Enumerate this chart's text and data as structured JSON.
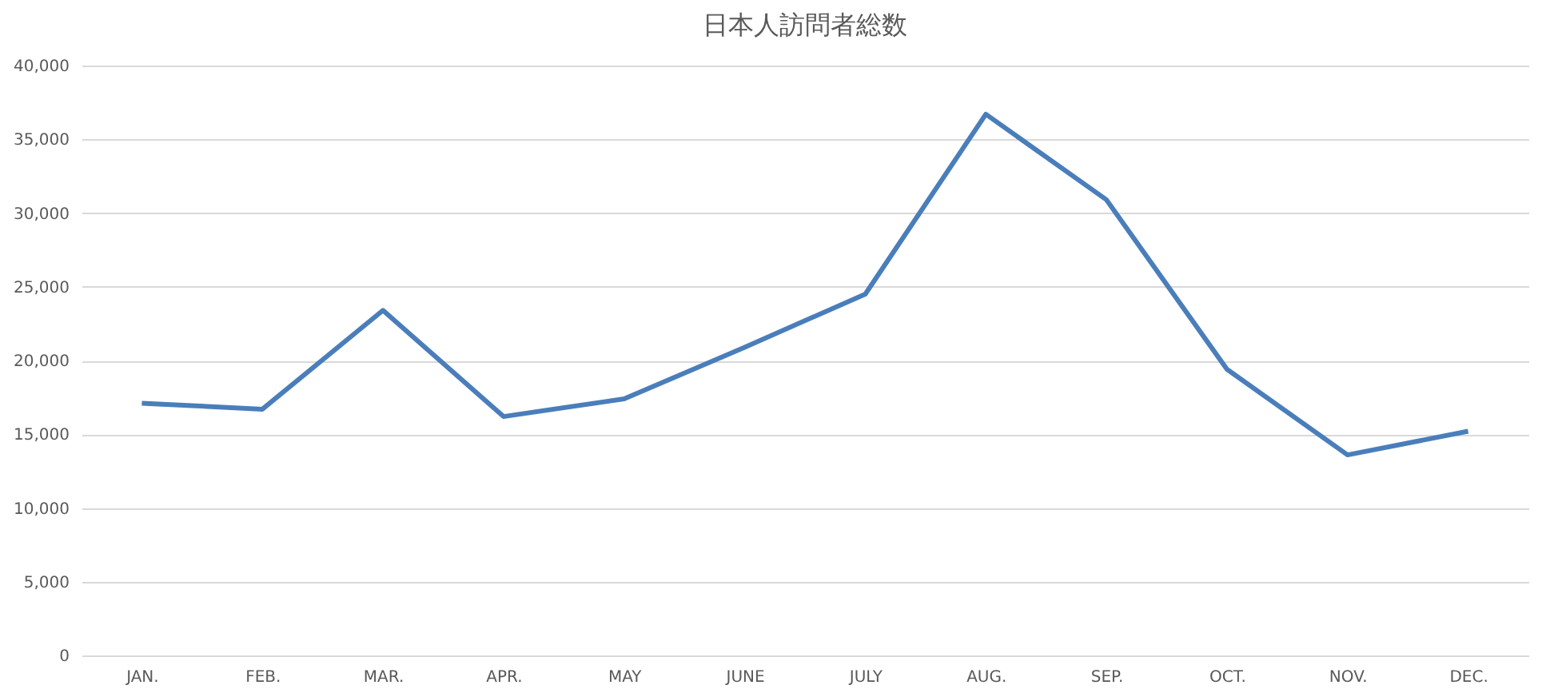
{
  "chart_data": {
    "type": "line",
    "title": "日本人訪問者総数",
    "categories": [
      "JAN.",
      "FEB.",
      "MAR.",
      "APR.",
      "MAY",
      "JUNE",
      "JULY",
      "AUG.",
      "SEP.",
      "OCT.",
      "NOV.",
      "DEC."
    ],
    "series": [
      {
        "color": "#4a7ebb",
        "values": [
          17100,
          16700,
          23400,
          16200,
          17400,
          20900,
          24500,
          36700,
          30900,
          19400,
          13600,
          15200
        ]
      }
    ],
    "ylim": [
      0,
      40000
    ],
    "yticks": [
      {
        "value": 0,
        "label": "0"
      },
      {
        "value": 5000,
        "label": "5,000"
      },
      {
        "value": 10000,
        "label": "10,000"
      },
      {
        "value": 15000,
        "label": "15,000"
      },
      {
        "value": 20000,
        "label": "20,000"
      },
      {
        "value": 25000,
        "label": "25,000"
      },
      {
        "value": 30000,
        "label": "30,000"
      },
      {
        "value": 35000,
        "label": "35,000"
      },
      {
        "value": 40000,
        "label": "40,000"
      }
    ],
    "grid": "y",
    "legend": false,
    "marker": "none",
    "line_style": "solid"
  }
}
